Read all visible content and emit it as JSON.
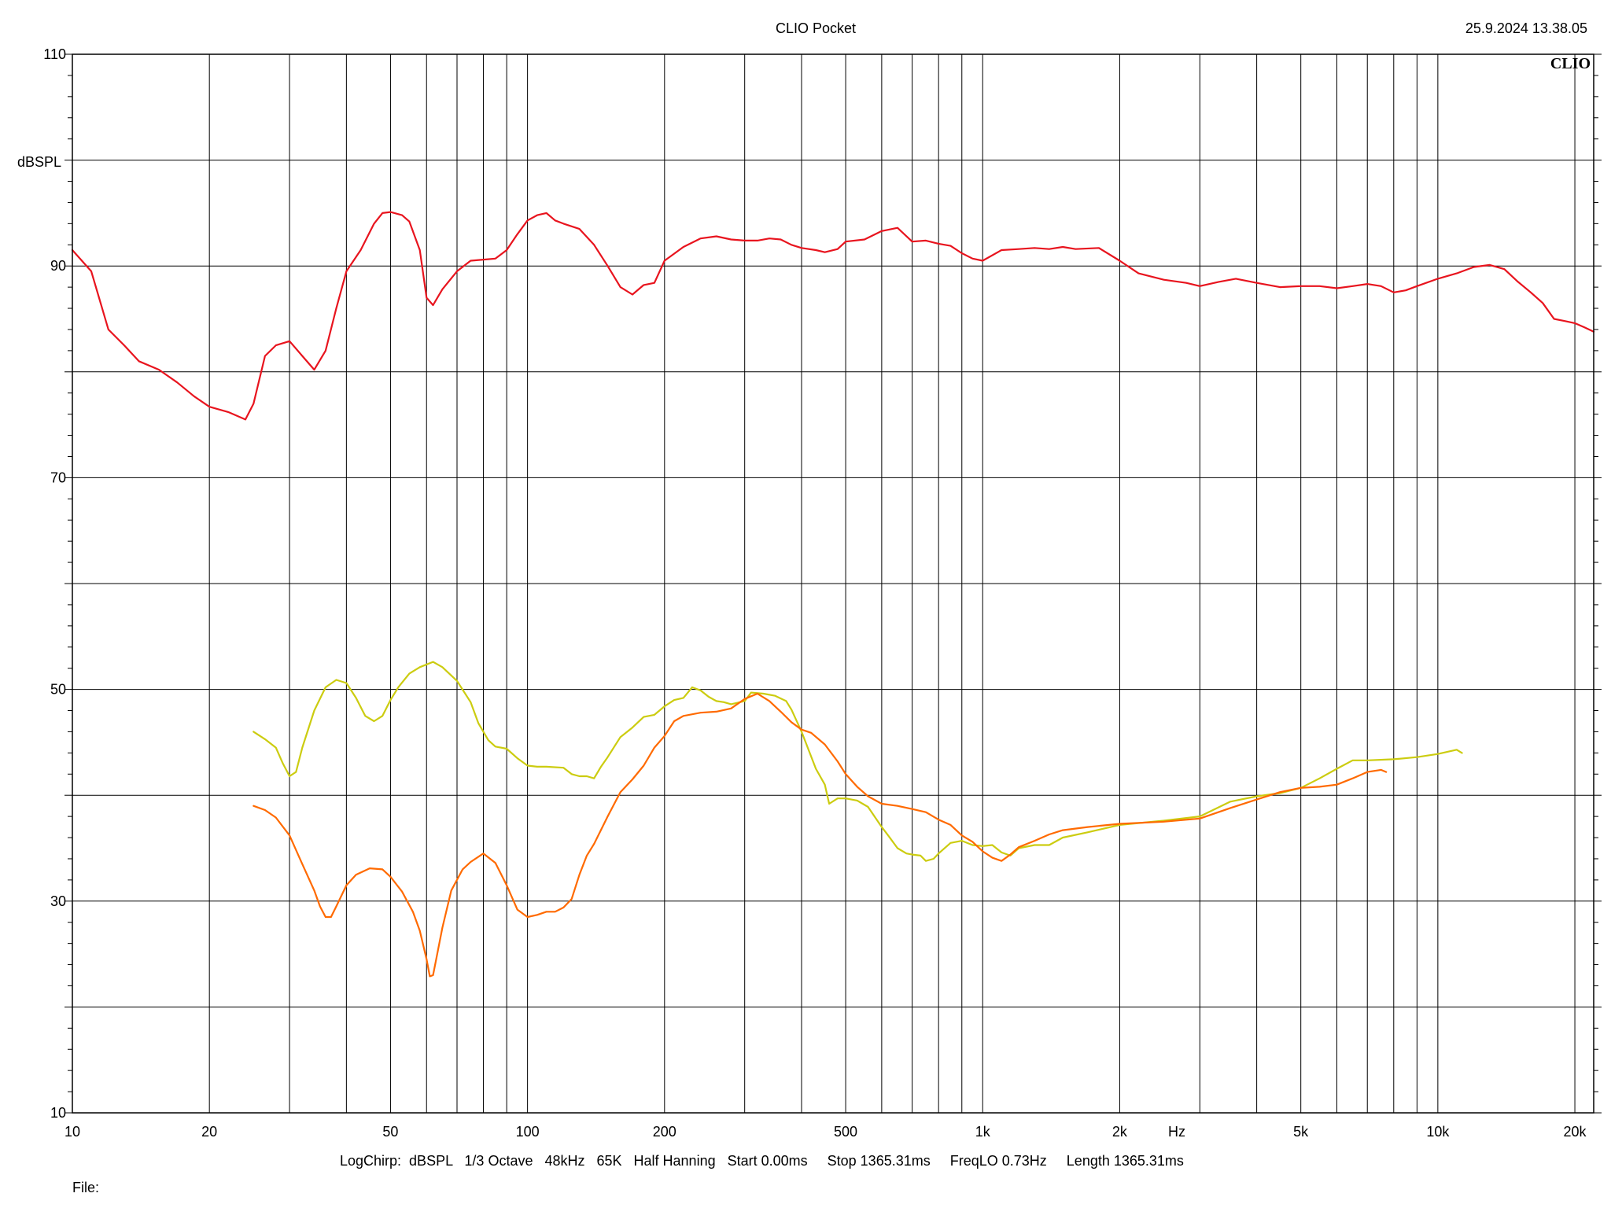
{
  "header": {
    "app_title": "CLIO Pocket",
    "timestamp": "25.9.2024 13.38.05",
    "brand": "CLIO"
  },
  "footer": {
    "settings": "LogChirp:  dBSPL   1/3 Octave   48kHz   65K   Half Hanning   Start 0.00ms     Stop 1365.31ms     FreqLO 0.73Hz     Length 1365.31ms",
    "file_label": "File:"
  },
  "chart_data": {
    "type": "line",
    "xlabel": "Hz",
    "ylabel": "dBSPL",
    "xscale": "log",
    "xlim": [
      10,
      22000
    ],
    "ylim": [
      10,
      110
    ],
    "grid": true,
    "x_ticks": [
      {
        "value": 10,
        "label": "10"
      },
      {
        "value": 20,
        "label": "20"
      },
      {
        "value": 50,
        "label": "50"
      },
      {
        "value": 100,
        "label": "100"
      },
      {
        "value": 200,
        "label": "200"
      },
      {
        "value": 500,
        "label": "500"
      },
      {
        "value": 1000,
        "label": "1k"
      },
      {
        "value": 2000,
        "label": "2k"
      },
      {
        "value": 5000,
        "label": "5k"
      },
      {
        "value": 10000,
        "label": "10k"
      },
      {
        "value": 20000,
        "label": "20k"
      }
    ],
    "y_ticks": [
      {
        "value": 10,
        "label": "10"
      },
      {
        "value": 30,
        "label": "30"
      },
      {
        "value": 50,
        "label": "50"
      },
      {
        "value": 70,
        "label": "70"
      },
      {
        "value": 90,
        "label": "90"
      },
      {
        "value": 110,
        "label": "110"
      }
    ],
    "series": [
      {
        "color": "#e8141e",
        "points": [
          [
            10,
            91.5
          ],
          [
            11,
            89.5
          ],
          [
            12,
            84
          ],
          [
            13,
            82.5
          ],
          [
            14,
            81
          ],
          [
            15.5,
            80.2
          ],
          [
            17,
            79
          ],
          [
            18.5,
            77.7
          ],
          [
            20,
            76.7
          ],
          [
            22,
            76.2
          ],
          [
            24,
            75.5
          ],
          [
            25,
            77
          ],
          [
            26.5,
            81.5
          ],
          [
            28,
            82.5
          ],
          [
            30,
            82.9
          ],
          [
            32,
            81.5
          ],
          [
            34,
            80.2
          ],
          [
            36,
            82
          ],
          [
            38,
            86
          ],
          [
            40,
            89.5
          ],
          [
            43,
            91.5
          ],
          [
            46,
            94
          ],
          [
            48,
            95
          ],
          [
            50,
            95.1
          ],
          [
            53,
            94.8
          ],
          [
            55,
            94.2
          ],
          [
            58,
            91.5
          ],
          [
            60,
            87
          ],
          [
            62,
            86.3
          ],
          [
            65,
            87.8
          ],
          [
            70,
            89.5
          ],
          [
            75,
            90.5
          ],
          [
            80,
            90.6
          ],
          [
            85,
            90.7
          ],
          [
            90,
            91.5
          ],
          [
            95,
            93
          ],
          [
            100,
            94.3
          ],
          [
            105,
            94.8
          ],
          [
            110,
            95
          ],
          [
            115,
            94.3
          ],
          [
            120,
            94
          ],
          [
            130,
            93.5
          ],
          [
            140,
            92
          ],
          [
            150,
            90
          ],
          [
            160,
            88
          ],
          [
            170,
            87.3
          ],
          [
            180,
            88.2
          ],
          [
            190,
            88.4
          ],
          [
            200,
            90.5
          ],
          [
            220,
            91.8
          ],
          [
            240,
            92.6
          ],
          [
            260,
            92.8
          ],
          [
            280,
            92.5
          ],
          [
            300,
            92.4
          ],
          [
            320,
            92.4
          ],
          [
            340,
            92.6
          ],
          [
            360,
            92.5
          ],
          [
            380,
            92
          ],
          [
            400,
            91.7
          ],
          [
            430,
            91.5
          ],
          [
            450,
            91.3
          ],
          [
            480,
            91.6
          ],
          [
            500,
            92.3
          ],
          [
            550,
            92.5
          ],
          [
            600,
            93.3
          ],
          [
            650,
            93.6
          ],
          [
            700,
            92.3
          ],
          [
            750,
            92.4
          ],
          [
            800,
            92.1
          ],
          [
            850,
            91.9
          ],
          [
            900,
            91.2
          ],
          [
            950,
            90.7
          ],
          [
            1000,
            90.5
          ],
          [
            1100,
            91.5
          ],
          [
            1200,
            91.6
          ],
          [
            1300,
            91.7
          ],
          [
            1400,
            91.6
          ],
          [
            1500,
            91.8
          ],
          [
            1600,
            91.6
          ],
          [
            1800,
            91.7
          ],
          [
            2000,
            90.5
          ],
          [
            2200,
            89.3
          ],
          [
            2500,
            88.7
          ],
          [
            2800,
            88.4
          ],
          [
            3000,
            88.1
          ],
          [
            3300,
            88.5
          ],
          [
            3600,
            88.8
          ],
          [
            4000,
            88.4
          ],
          [
            4500,
            88
          ],
          [
            5000,
            88.1
          ],
          [
            5500,
            88.1
          ],
          [
            6000,
            87.9
          ],
          [
            6500,
            88.1
          ],
          [
            7000,
            88.3
          ],
          [
            7500,
            88.1
          ],
          [
            8000,
            87.5
          ],
          [
            8500,
            87.7
          ],
          [
            9000,
            88.1
          ],
          [
            10000,
            88.8
          ],
          [
            11000,
            89.3
          ],
          [
            12000,
            89.9
          ],
          [
            13000,
            90.1
          ],
          [
            14000,
            89.7
          ],
          [
            15000,
            88.5
          ],
          [
            16000,
            87.5
          ],
          [
            17000,
            86.5
          ],
          [
            18000,
            85
          ],
          [
            19000,
            84.8
          ],
          [
            20000,
            84.6
          ],
          [
            21000,
            84.2
          ],
          [
            22000,
            83.8
          ]
        ]
      },
      {
        "color": "#cccc10",
        "points": [
          [
            25,
            46
          ],
          [
            26.5,
            45.3
          ],
          [
            28,
            44.5
          ],
          [
            29,
            43
          ],
          [
            30,
            41.8
          ],
          [
            31,
            42.2
          ],
          [
            32,
            44.5
          ],
          [
            34,
            48
          ],
          [
            36,
            50.2
          ],
          [
            38,
            50.9
          ],
          [
            40,
            50.6
          ],
          [
            42,
            49.2
          ],
          [
            44,
            47.5
          ],
          [
            46,
            47
          ],
          [
            48,
            47.5
          ],
          [
            50,
            49
          ],
          [
            52,
            50.2
          ],
          [
            55,
            51.5
          ],
          [
            58,
            52.1
          ],
          [
            62,
            52.6
          ],
          [
            65,
            52.1
          ],
          [
            70,
            50.8
          ],
          [
            75,
            48.8
          ],
          [
            78,
            46.8
          ],
          [
            82,
            45.2
          ],
          [
            85,
            44.6
          ],
          [
            90,
            44.4
          ],
          [
            95,
            43.5
          ],
          [
            100,
            42.8
          ],
          [
            105,
            42.7
          ],
          [
            110,
            42.7
          ],
          [
            120,
            42.6
          ],
          [
            125,
            42
          ],
          [
            130,
            41.8
          ],
          [
            135,
            41.8
          ],
          [
            140,
            41.6
          ],
          [
            145,
            42.7
          ],
          [
            150,
            43.6
          ],
          [
            160,
            45.5
          ],
          [
            170,
            46.4
          ],
          [
            180,
            47.4
          ],
          [
            190,
            47.6
          ],
          [
            200,
            48.4
          ],
          [
            210,
            49
          ],
          [
            220,
            49.2
          ],
          [
            230,
            50.2
          ],
          [
            240,
            49.9
          ],
          [
            250,
            49.3
          ],
          [
            260,
            48.9
          ],
          [
            270,
            48.8
          ],
          [
            280,
            48.6
          ],
          [
            300,
            48.9
          ],
          [
            310,
            49.7
          ],
          [
            330,
            49.6
          ],
          [
            350,
            49.4
          ],
          [
            370,
            48.9
          ],
          [
            380,
            48.1
          ],
          [
            400,
            46
          ],
          [
            430,
            42.5
          ],
          [
            450,
            41
          ],
          [
            460,
            39.2
          ],
          [
            480,
            39.7
          ],
          [
            500,
            39.7
          ],
          [
            530,
            39.5
          ],
          [
            560,
            38.9
          ],
          [
            600,
            37
          ],
          [
            620,
            36.2
          ],
          [
            650,
            35
          ],
          [
            680,
            34.5
          ],
          [
            700,
            34.4
          ],
          [
            730,
            34.3
          ],
          [
            750,
            33.8
          ],
          [
            780,
            34
          ],
          [
            800,
            34.5
          ],
          [
            850,
            35.5
          ],
          [
            900,
            35.7
          ],
          [
            950,
            35.3
          ],
          [
            1000,
            35.2
          ],
          [
            1050,
            35.3
          ],
          [
            1100,
            34.6
          ],
          [
            1150,
            34.3
          ],
          [
            1200,
            35
          ],
          [
            1300,
            35.3
          ],
          [
            1400,
            35.3
          ],
          [
            1500,
            36
          ],
          [
            1700,
            36.5
          ],
          [
            2000,
            37.2
          ],
          [
            2500,
            37.6
          ],
          [
            3000,
            38
          ],
          [
            3500,
            39.4
          ],
          [
            4000,
            39.9
          ],
          [
            4500,
            40.2
          ],
          [
            5000,
            40.7
          ],
          [
            5500,
            41.6
          ],
          [
            6000,
            42.5
          ],
          [
            6500,
            43.3
          ],
          [
            7000,
            43.3
          ],
          [
            8000,
            43.4
          ],
          [
            9000,
            43.6
          ],
          [
            10000,
            43.9
          ],
          [
            11000,
            44.3
          ],
          [
            11300,
            44
          ]
        ]
      },
      {
        "color": "#ff6a00",
        "points": [
          [
            25,
            39
          ],
          [
            26.5,
            38.6
          ],
          [
            28,
            37.9
          ],
          [
            30,
            36.2
          ],
          [
            32,
            33.5
          ],
          [
            34,
            31
          ],
          [
            35,
            29.5
          ],
          [
            36,
            28.5
          ],
          [
            37,
            28.5
          ],
          [
            38,
            29.5
          ],
          [
            40,
            31.5
          ],
          [
            42,
            32.5
          ],
          [
            45,
            33.1
          ],
          [
            48,
            33
          ],
          [
            50,
            32.3
          ],
          [
            53,
            30.9
          ],
          [
            56,
            29
          ],
          [
            58,
            27.2
          ],
          [
            60,
            24.5
          ],
          [
            61,
            22.9
          ],
          [
            62,
            23
          ],
          [
            63,
            24.5
          ],
          [
            65,
            27.5
          ],
          [
            68,
            31
          ],
          [
            72,
            33
          ],
          [
            75,
            33.7
          ],
          [
            80,
            34.5
          ],
          [
            85,
            33.6
          ],
          [
            90,
            31.5
          ],
          [
            95,
            29.2
          ],
          [
            100,
            28.5
          ],
          [
            105,
            28.7
          ],
          [
            110,
            29
          ],
          [
            115,
            29
          ],
          [
            120,
            29.4
          ],
          [
            125,
            30.2
          ],
          [
            130,
            32.5
          ],
          [
            135,
            34.3
          ],
          [
            140,
            35.4
          ],
          [
            150,
            38
          ],
          [
            160,
            40.3
          ],
          [
            170,
            41.5
          ],
          [
            180,
            42.8
          ],
          [
            190,
            44.5
          ],
          [
            200,
            45.6
          ],
          [
            210,
            47
          ],
          [
            220,
            47.5
          ],
          [
            240,
            47.8
          ],
          [
            260,
            47.9
          ],
          [
            280,
            48.2
          ],
          [
            300,
            49.1
          ],
          [
            320,
            49.6
          ],
          [
            340,
            48.9
          ],
          [
            360,
            47.9
          ],
          [
            380,
            46.9
          ],
          [
            400,
            46.2
          ],
          [
            420,
            45.9
          ],
          [
            450,
            44.8
          ],
          [
            480,
            43.2
          ],
          [
            500,
            42
          ],
          [
            530,
            40.8
          ],
          [
            560,
            39.9
          ],
          [
            600,
            39.2
          ],
          [
            650,
            39
          ],
          [
            700,
            38.7
          ],
          [
            750,
            38.4
          ],
          [
            800,
            37.7
          ],
          [
            850,
            37.2
          ],
          [
            900,
            36.2
          ],
          [
            950,
            35.6
          ],
          [
            1000,
            34.7
          ],
          [
            1050,
            34.1
          ],
          [
            1100,
            33.8
          ],
          [
            1150,
            34.4
          ],
          [
            1200,
            35.1
          ],
          [
            1300,
            35.7
          ],
          [
            1400,
            36.3
          ],
          [
            1500,
            36.7
          ],
          [
            1700,
            37
          ],
          [
            2000,
            37.3
          ],
          [
            2500,
            37.5
          ],
          [
            3000,
            37.8
          ],
          [
            3500,
            38.8
          ],
          [
            4000,
            39.6
          ],
          [
            4500,
            40.3
          ],
          [
            5000,
            40.7
          ],
          [
            5500,
            40.8
          ],
          [
            6000,
            41
          ],
          [
            6500,
            41.6
          ],
          [
            7000,
            42.2
          ],
          [
            7500,
            42.4
          ],
          [
            7700,
            42.2
          ]
        ]
      }
    ]
  }
}
